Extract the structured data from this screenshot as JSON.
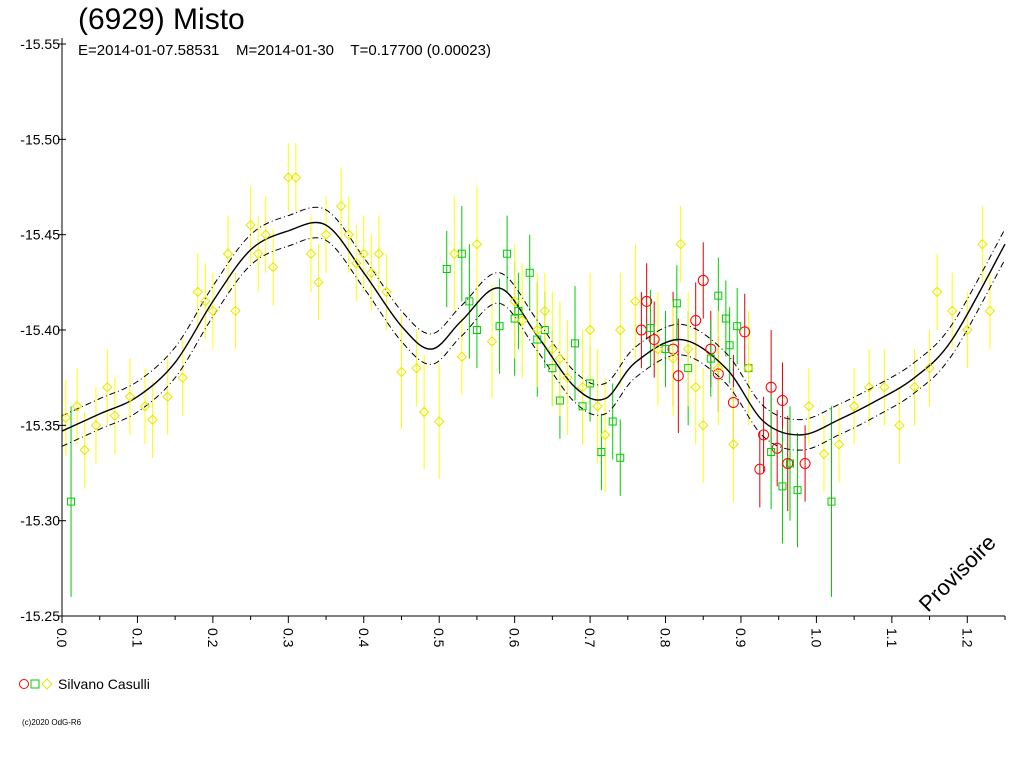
{
  "chart_data": {
    "type": "scatter",
    "title": "(6929) Misto",
    "subtitle": "E=2014-01-07.58531    M=2014-01-30    T=0.17700 (0.00023)",
    "watermark": "Provisoire",
    "xlim": [
      0.0,
      1.25
    ],
    "ylim": [
      -15.55,
      -15.25
    ],
    "x_ticks": [
      "0.0",
      "0.1",
      "0.2",
      "0.3",
      "0.4",
      "0.5",
      "0.6",
      "0.7",
      "0.8",
      "0.9",
      "1.0",
      "1.1",
      "1.2"
    ],
    "y_ticks": [
      "-15.55",
      "-15.50",
      "-15.45",
      "-15.40",
      "-15.35",
      "-15.30",
      "-15.25"
    ],
    "grid": false,
    "legend": {
      "label": "Silvano Casulli",
      "placement": "bottom-left",
      "markers": [
        "red-circle",
        "green-square",
        "yellow-diamond"
      ]
    },
    "colors": {
      "circle": "#ff0000",
      "square": "#00cc00",
      "diamond": "#ffff00",
      "curve": "#000000"
    },
    "fit_curve": {
      "x": [
        0.0,
        0.05,
        0.1,
        0.15,
        0.2,
        0.25,
        0.3,
        0.35,
        0.4,
        0.45,
        0.49,
        0.53,
        0.58,
        0.63,
        0.68,
        0.72,
        0.76,
        0.82,
        0.88,
        0.93,
        0.98,
        1.03,
        1.08,
        1.13,
        1.18,
        1.25
      ],
      "y": [
        -15.347,
        -15.356,
        -15.365,
        -15.383,
        -15.415,
        -15.442,
        -15.452,
        -15.455,
        -15.43,
        -15.402,
        -15.39,
        -15.405,
        -15.422,
        -15.397,
        -15.37,
        -15.364,
        -15.383,
        -15.395,
        -15.38,
        -15.352,
        -15.345,
        -15.353,
        -15.363,
        -15.375,
        -15.395,
        -15.445
      ],
      "band": 0.008
    },
    "series": [
      {
        "marker": "circle",
        "color": "#ff0000",
        "x": [
          0.768,
          0.775,
          0.785,
          0.81,
          0.817,
          0.84,
          0.85,
          0.86,
          0.87,
          0.89,
          0.905,
          0.925,
          0.93,
          0.94,
          0.948,
          0.955,
          0.962,
          0.985
        ],
        "y": [
          -15.4,
          -15.415,
          -15.395,
          -15.39,
          -15.376,
          -15.405,
          -15.426,
          -15.39,
          -15.377,
          -15.362,
          -15.399,
          -15.327,
          -15.345,
          -15.37,
          -15.338,
          -15.363,
          -15.33,
          -15.33
        ],
        "err": [
          0.02,
          0.02,
          0.02,
          0.03,
          0.03,
          0.02,
          0.02,
          0.02,
          0.02,
          0.025,
          0.02,
          0.02,
          0.02,
          0.03,
          0.02,
          0.02,
          0.025,
          0.02
        ]
      },
      {
        "marker": "square",
        "color": "#00cc00",
        "x": [
          0.012,
          0.51,
          0.53,
          0.54,
          0.55,
          0.58,
          0.59,
          0.6,
          0.605,
          0.62,
          0.63,
          0.64,
          0.65,
          0.66,
          0.68,
          0.69,
          0.7,
          0.715,
          0.73,
          0.74,
          0.78,
          0.8,
          0.815,
          0.83,
          0.86,
          0.87,
          0.88,
          0.885,
          0.895,
          0.91,
          0.94,
          0.955,
          0.965,
          0.975,
          1.02
        ],
        "y": [
          -15.31,
          -15.432,
          -15.44,
          -15.415,
          -15.4,
          -15.402,
          -15.44,
          -15.406,
          -15.41,
          -15.43,
          -15.395,
          -15.4,
          -15.38,
          -15.363,
          -15.393,
          -15.36,
          -15.372,
          -15.336,
          -15.352,
          -15.333,
          -15.401,
          -15.39,
          -15.414,
          -15.38,
          -15.385,
          -15.418,
          -15.406,
          -15.392,
          -15.402,
          -15.38,
          -15.336,
          -15.318,
          -15.33,
          -15.316,
          -15.31
        ],
        "err": [
          0.05,
          0.02,
          0.025,
          0.03,
          0.02,
          0.025,
          0.02,
          0.03,
          0.02,
          0.02,
          0.03,
          0.02,
          0.02,
          0.02,
          0.03,
          0.02,
          0.02,
          0.02,
          0.02,
          0.02,
          0.02,
          0.02,
          0.02,
          0.03,
          0.02,
          0.02,
          0.02,
          0.02,
          0.02,
          0.02,
          0.03,
          0.03,
          0.03,
          0.03,
          0.05
        ]
      },
      {
        "marker": "diamond",
        "color": "#ffff00",
        "x": [
          0.005,
          0.02,
          0.03,
          0.045,
          0.06,
          0.07,
          0.09,
          0.11,
          0.12,
          0.14,
          0.16,
          0.18,
          0.19,
          0.2,
          0.22,
          0.23,
          0.25,
          0.26,
          0.27,
          0.28,
          0.3,
          0.31,
          0.33,
          0.34,
          0.35,
          0.37,
          0.38,
          0.39,
          0.4,
          0.41,
          0.42,
          0.43,
          0.45,
          0.47,
          0.48,
          0.5,
          0.52,
          0.53,
          0.55,
          0.57,
          0.6,
          0.61,
          0.63,
          0.64,
          0.65,
          0.66,
          0.67,
          0.69,
          0.7,
          0.71,
          0.72,
          0.74,
          0.76,
          0.79,
          0.81,
          0.82,
          0.83,
          0.84,
          0.85,
          0.87,
          0.89,
          0.91,
          0.99,
          1.01,
          1.03,
          1.05,
          1.07,
          1.09,
          1.11,
          1.13,
          1.15,
          1.16,
          1.18,
          1.2,
          1.22,
          1.23
        ],
        "y": [
          -15.354,
          -15.36,
          -15.337,
          -15.35,
          -15.37,
          -15.355,
          -15.365,
          -15.36,
          -15.353,
          -15.365,
          -15.375,
          -15.42,
          -15.415,
          -15.41,
          -15.44,
          -15.41,
          -15.455,
          -15.44,
          -15.45,
          -15.433,
          -15.48,
          -15.48,
          -15.44,
          -15.425,
          -15.45,
          -15.465,
          -15.45,
          -15.435,
          -15.44,
          -15.43,
          -15.44,
          -15.42,
          -15.378,
          -15.38,
          -15.357,
          -15.352,
          -15.44,
          -15.386,
          -15.445,
          -15.394,
          -15.415,
          -15.405,
          -15.4,
          -15.41,
          -15.39,
          -15.385,
          -15.375,
          -15.37,
          -15.4,
          -15.36,
          -15.345,
          -15.4,
          -15.415,
          -15.39,
          -15.385,
          -15.445,
          -15.39,
          -15.37,
          -15.35,
          -15.38,
          -15.34,
          -15.38,
          -15.36,
          -15.335,
          -15.34,
          -15.36,
          -15.37,
          -15.37,
          -15.35,
          -15.37,
          -15.38,
          -15.42,
          -15.41,
          -15.4,
          -15.445,
          -15.41
        ],
        "err": [
          0.02,
          0.02,
          0.02,
          0.02,
          0.02,
          0.02,
          0.02,
          0.02,
          0.02,
          0.02,
          0.02,
          0.02,
          0.02,
          0.02,
          0.02,
          0.02,
          0.02,
          0.02,
          0.02,
          0.02,
          0.018,
          0.018,
          0.02,
          0.02,
          0.02,
          0.02,
          0.02,
          0.02,
          0.02,
          0.02,
          0.02,
          0.02,
          0.03,
          0.02,
          0.03,
          0.03,
          0.03,
          0.02,
          0.03,
          0.03,
          0.03,
          0.03,
          0.03,
          0.02,
          0.03,
          0.03,
          0.03,
          0.03,
          0.03,
          0.03,
          0.03,
          0.03,
          0.03,
          0.03,
          0.03,
          0.02,
          0.03,
          0.03,
          0.03,
          0.03,
          0.03,
          0.03,
          0.02,
          0.02,
          0.02,
          0.02,
          0.02,
          0.02,
          0.02,
          0.02,
          0.02,
          0.02,
          0.02,
          0.02,
          0.02,
          0.02
        ]
      }
    ]
  },
  "copyright": "(c)2020 OdG-R6"
}
